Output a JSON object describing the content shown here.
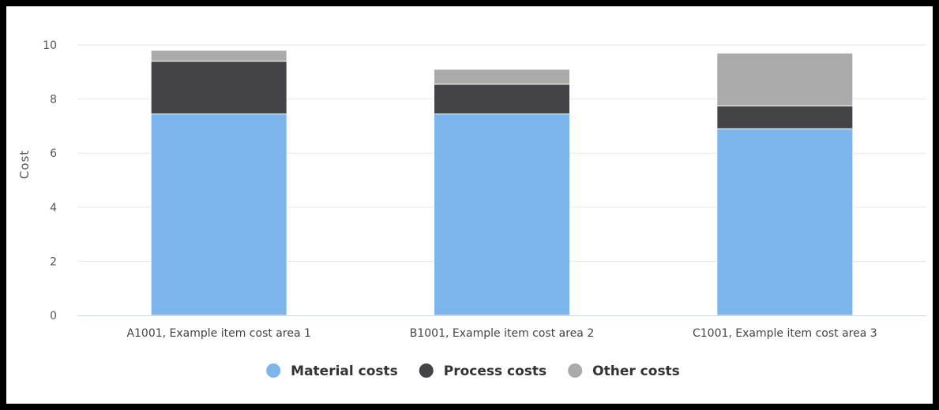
{
  "chart_data": {
    "type": "bar",
    "stacked": true,
    "title": "",
    "xlabel": "",
    "ylabel": "Cost",
    "ylim": [
      0,
      10
    ],
    "yticks": [
      0,
      2,
      4,
      6,
      8,
      10
    ],
    "grid": true,
    "legend_position": "bottom-center",
    "categories": [
      "A1001, Example item cost area 1",
      "B1001, Example item cost area 2",
      "C1001, Example item cost area 3"
    ],
    "series": [
      {
        "name": "Material costs",
        "color": "#7cb5ec",
        "values": [
          7.45,
          7.45,
          6.9
        ]
      },
      {
        "name": "Process costs",
        "color": "#434348",
        "values": [
          1.95,
          1.1,
          0.85
        ]
      },
      {
        "name": "Other costs",
        "color": "#aaaaaa",
        "values": [
          0.4,
          0.55,
          1.95
        ]
      }
    ]
  }
}
